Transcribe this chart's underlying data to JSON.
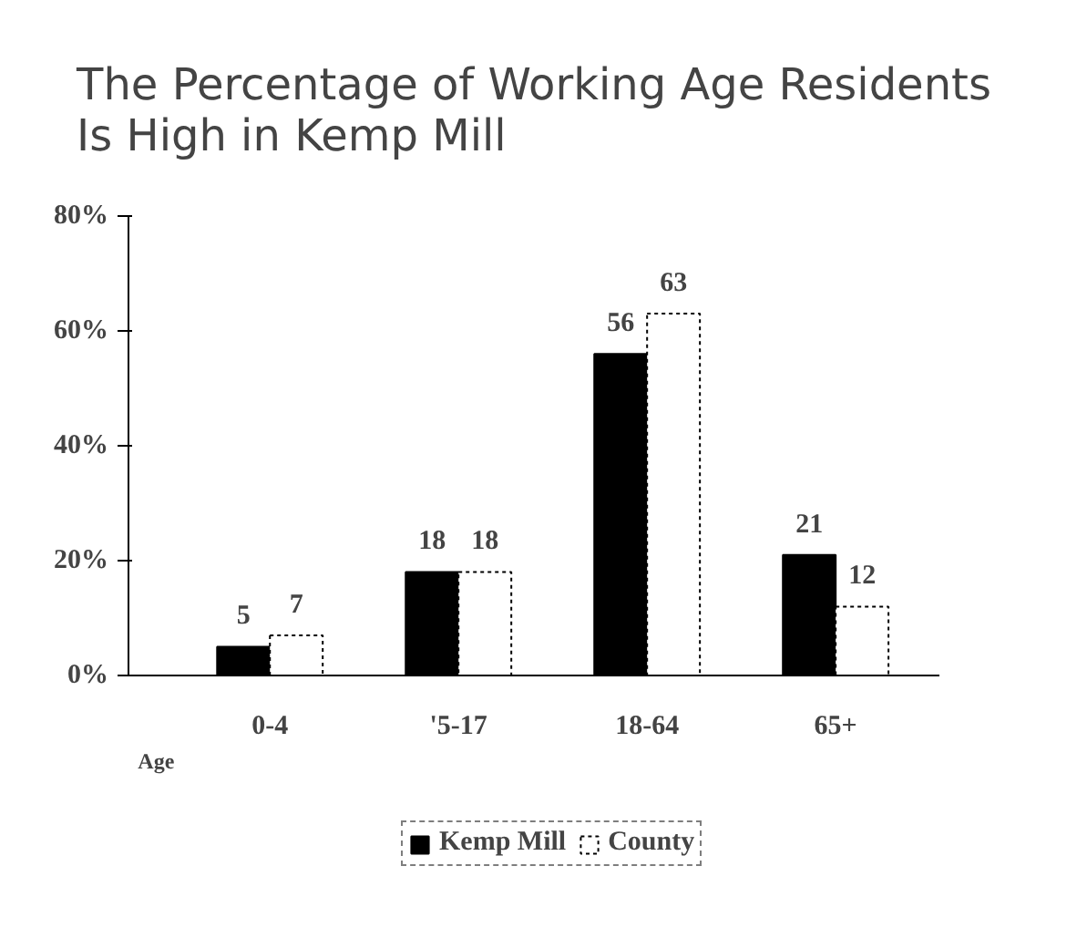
{
  "chart_data": {
    "type": "bar",
    "title": "The Percentage of Working Age Residents Is High in Kemp Mill",
    "xlabel": "Age",
    "categories": [
      "0-4",
      "'5-17",
      "18-64",
      "65+"
    ],
    "series": [
      {
        "name": "Kemp Mill",
        "color": "#000000",
        "values": [
          5,
          18,
          56,
          21
        ]
      },
      {
        "name": "County",
        "color": "#ffffff",
        "values": [
          7,
          18,
          63,
          12
        ]
      }
    ],
    "ylim": [
      0,
      80
    ],
    "yticks": [
      {
        "value": 0,
        "label": "0%"
      },
      {
        "value": 20,
        "label": "20%"
      },
      {
        "value": 40,
        "label": "40%"
      },
      {
        "value": 60,
        "label": "60%"
      },
      {
        "value": 80,
        "label": "80%"
      }
    ],
    "data_labels": true,
    "grid": false,
    "legend": "bottom"
  }
}
